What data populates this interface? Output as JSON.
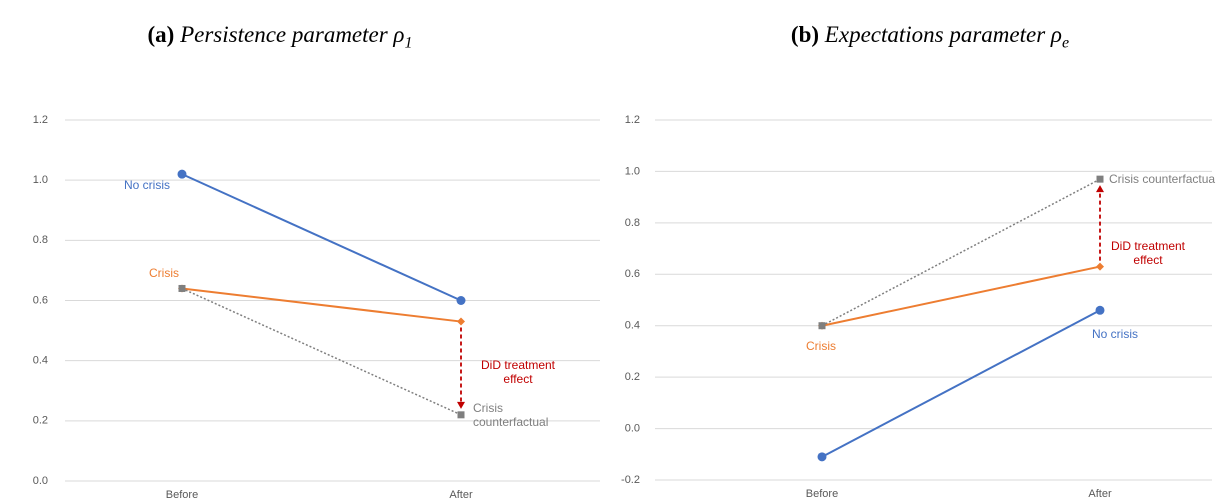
{
  "chart_data": [
    {
      "type": "line",
      "title_label": "(a)",
      "title": "Persistence parameter ρ",
      "title_subscript": "1",
      "categories": [
        "Before",
        "After"
      ],
      "ylim": [
        0,
        1.2
      ],
      "yticks": [
        {
          "value": 0,
          "label": "0.0"
        },
        {
          "value": 0.2,
          "label": "0.2"
        },
        {
          "value": 0.4,
          "label": "0.4"
        },
        {
          "value": 0.6,
          "label": "0.6"
        },
        {
          "value": 0.8,
          "label": "0.8"
        },
        {
          "value": 1,
          "label": "1.0"
        },
        {
          "value": 1.2,
          "label": "1.2"
        }
      ],
      "grid": true,
      "series": [
        {
          "name": "No crisis",
          "color": "#4472c4",
          "marker": "circle",
          "line_style": "solid",
          "values": [
            1.02,
            0.6
          ]
        },
        {
          "name": "Crisis",
          "color": "#ed7d31",
          "marker": "diamond",
          "line_style": "solid",
          "values": [
            0.64,
            0.53
          ]
        },
        {
          "name": "Crisis counterfactual",
          "color": "#7f7f7f",
          "marker": "square",
          "line_style": "dotted",
          "values": [
            0.64,
            0.22
          ]
        }
      ],
      "annotation": {
        "text": "DiD treatment effect",
        "color": "#c00000"
      }
    },
    {
      "type": "line",
      "title_label": "(b)",
      "title": "Expectations parameter ρ",
      "title_subscript": "e",
      "categories": [
        "Before",
        "After"
      ],
      "ylim": [
        -0.2,
        1.2
      ],
      "yticks": [
        {
          "value": -0.2,
          "label": "-0.2"
        },
        {
          "value": 0,
          "label": "0.0"
        },
        {
          "value": 0.2,
          "label": "0.2"
        },
        {
          "value": 0.4,
          "label": "0.4"
        },
        {
          "value": 0.6,
          "label": "0.6"
        },
        {
          "value": 0.8,
          "label": "0.8"
        },
        {
          "value": 1,
          "label": "1.0"
        },
        {
          "value": 1.2,
          "label": "1.2"
        }
      ],
      "grid": true,
      "series": [
        {
          "name": "No crisis",
          "color": "#4472c4",
          "marker": "circle",
          "line_style": "solid",
          "values": [
            -0.11,
            0.46
          ]
        },
        {
          "name": "Crisis",
          "color": "#ed7d31",
          "marker": "diamond",
          "line_style": "solid",
          "values": [
            0.4,
            0.63
          ]
        },
        {
          "name": "Crisis counterfactua",
          "color": "#7f7f7f",
          "marker": "square",
          "line_style": "dotted",
          "values": [
            0.4,
            0.97
          ]
        }
      ],
      "annotation": {
        "text": "DiD treatment effect",
        "color": "#c00000"
      }
    }
  ]
}
